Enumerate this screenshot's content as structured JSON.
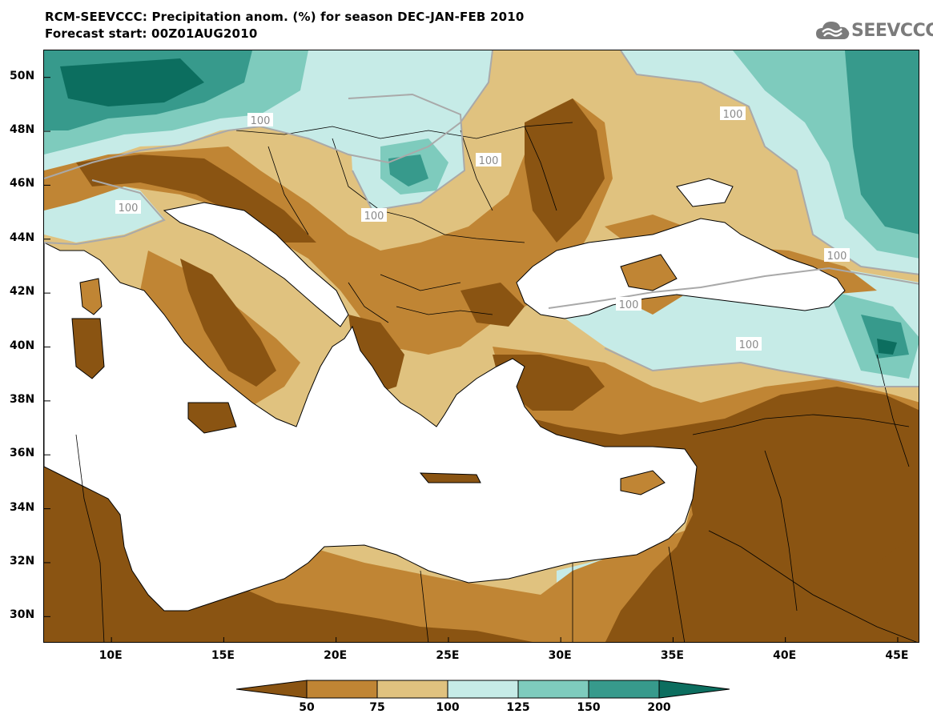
{
  "title": {
    "line1": "RCM-SEEVCCC: Precipitation anom. (%) for season DEC-JAN-FEB 2010",
    "line2": "Forecast start: 00Z01AUG2010"
  },
  "logo": {
    "text": "SEEVCCC",
    "icon": "cloud-icon"
  },
  "axes": {
    "lat_labels": [
      "50N",
      "48N",
      "46N",
      "44N",
      "42N",
      "40N",
      "38N",
      "36N",
      "34N",
      "32N",
      "30N"
    ],
    "lon_labels": [
      "10E",
      "15E",
      "20E",
      "25E",
      "30E",
      "35E",
      "40E",
      "45E"
    ],
    "lat_range": [
      29,
      51
    ],
    "lon_range": [
      7,
      46
    ]
  },
  "contour_label": "100",
  "colorbar": {
    "tick_labels": [
      "50",
      "75",
      "100",
      "125",
      "150",
      "200"
    ],
    "colors": [
      "#8a5412",
      "#c08534",
      "#e0c27f",
      "#c6ebe7",
      "#7ecbbd",
      "#379a8c",
      "#0c6e5f"
    ]
  },
  "colors": {
    "land_mask": "#ffffff",
    "coastline": "#000000",
    "contour_line": "#a9a9a9"
  }
}
